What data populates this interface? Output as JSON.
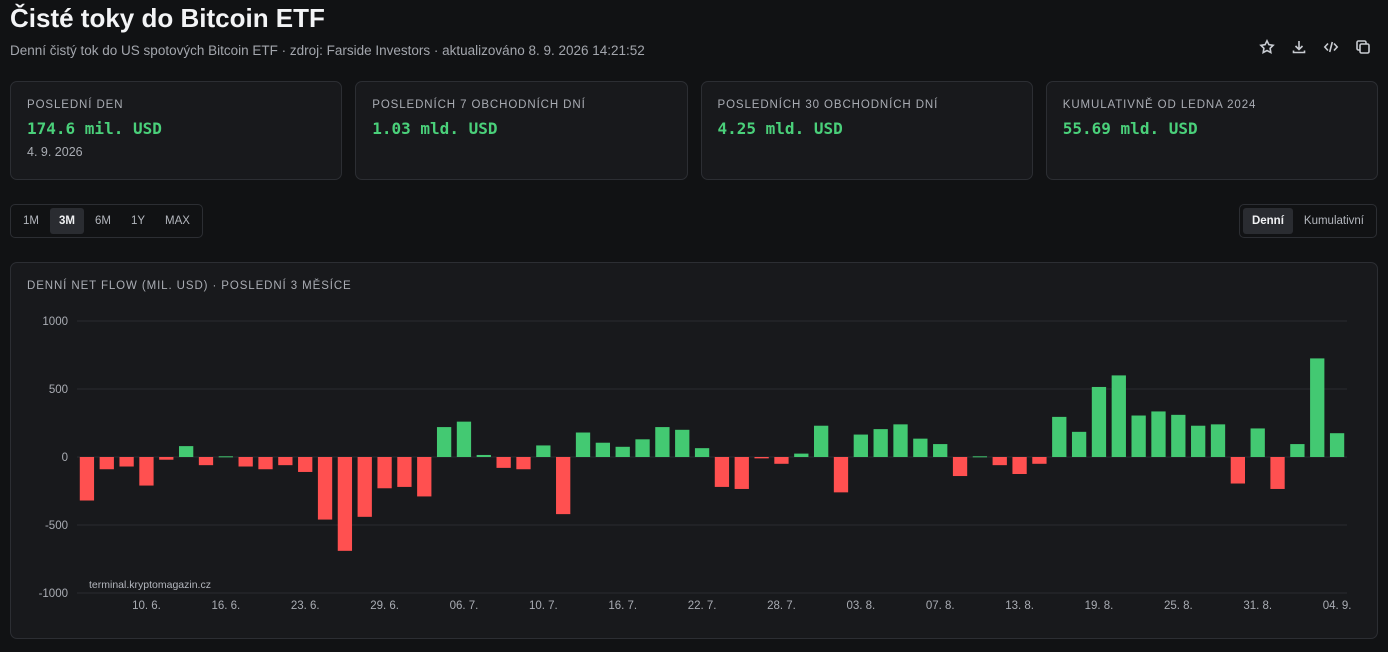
{
  "header": {
    "title": "Čisté toky do Bitcoin ETF",
    "subtitle": "Denní čistý tok do US spotových Bitcoin ETF · zdroj: Farside Investors · aktualizováno 8. 9. 2026 14:21:52"
  },
  "toolbar": {
    "icons": [
      "star-icon",
      "download-icon",
      "code-icon",
      "copy-icon"
    ]
  },
  "cards": [
    {
      "label": "POSLEDNÍ DEN",
      "value": "174.6 mil. USD",
      "date": "4. 9. 2026"
    },
    {
      "label": "POSLEDNÍCH 7 OBCHODNÍCH DNÍ",
      "value": "1.03 mld. USD"
    },
    {
      "label": "POSLEDNÍCH 30 OBCHODNÍCH DNÍ",
      "value": "4.25 mld. USD"
    },
    {
      "label": "KUMULATIVNĚ OD LEDNA 2024",
      "value": "55.69 mld. USD"
    }
  ],
  "range": {
    "options": [
      "1M",
      "3M",
      "6M",
      "1Y",
      "MAX"
    ],
    "selected": "3M"
  },
  "mode": {
    "options": [
      "Denní",
      "Kumulativní"
    ],
    "selected": "Denní"
  },
  "panel": {
    "title": "DENNÍ NET FLOW (MIL. USD) · POSLEDNÍ 3 MĚSÍCE",
    "watermark": "terminal.kryptomagazin.cz"
  },
  "colors": {
    "positive": "#43c972",
    "negative": "#ff5050",
    "value_text": "#4ad07a"
  },
  "chart_data": {
    "type": "bar",
    "title": "DENNÍ NET FLOW (MIL. USD) · POSLEDNÍ 3 MĚSÍCE",
    "xlabel": "",
    "ylabel": "",
    "ylim": [
      -1000,
      1000
    ],
    "yticks": [
      1000,
      500,
      0,
      -500,
      -1000
    ],
    "grid": true,
    "xtick_labels": [
      {
        "label": "10. 6.",
        "index": 3
      },
      {
        "label": "16. 6.",
        "index": 7
      },
      {
        "label": "23. 6.",
        "index": 11
      },
      {
        "label": "29. 6.",
        "index": 15
      },
      {
        "label": "06. 7.",
        "index": 19
      },
      {
        "label": "10. 7.",
        "index": 23
      },
      {
        "label": "16. 7.",
        "index": 27
      },
      {
        "label": "22. 7.",
        "index": 31
      },
      {
        "label": "28. 7.",
        "index": 35
      },
      {
        "label": "03. 8.",
        "index": 39
      },
      {
        "label": "07. 8.",
        "index": 43
      },
      {
        "label": "13. 8.",
        "index": 47
      },
      {
        "label": "19. 8.",
        "index": 51
      },
      {
        "label": "25. 8.",
        "index": 55
      },
      {
        "label": "31. 8.",
        "index": 59
      },
      {
        "label": "04. 9.",
        "index": 63
      }
    ],
    "values": [
      -320,
      -90,
      -70,
      -210,
      -20,
      80,
      -60,
      5,
      -70,
      -90,
      -60,
      -110,
      -460,
      -690,
      -440,
      -230,
      -220,
      -290,
      220,
      260,
      15,
      -80,
      -90,
      85,
      -420,
      180,
      105,
      75,
      130,
      220,
      200,
      65,
      -220,
      -235,
      -10,
      -50,
      25,
      230,
      -260,
      165,
      205,
      240,
      135,
      95,
      -140,
      5,
      -60,
      -125,
      -50,
      295,
      185,
      515,
      600,
      305,
      335,
      310,
      230,
      240,
      -195,
      210,
      -235,
      95,
      725,
      175
    ]
  }
}
